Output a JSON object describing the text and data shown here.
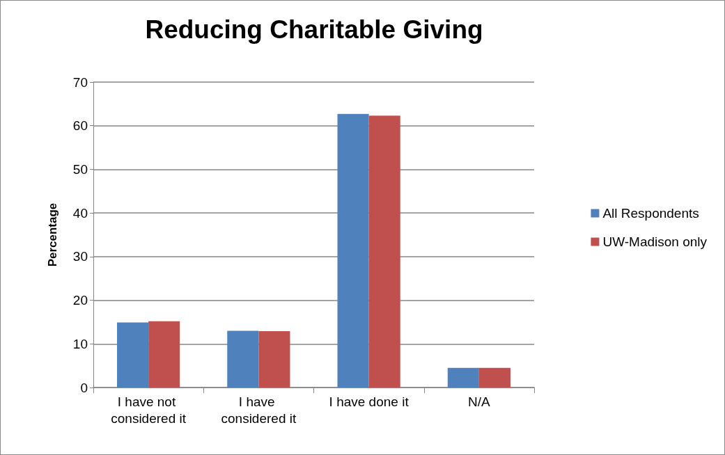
{
  "chart_data": {
    "type": "bar",
    "title": "Reducing Charitable Giving",
    "ylabel": "Percentage",
    "categories": [
      "I have not considered it",
      "I have considered it",
      "I have done it",
      "N/A"
    ],
    "series": [
      {
        "name": "All Respondents",
        "color": "#4f81bd",
        "values": [
          14.9,
          13.0,
          62.7,
          4.5
        ]
      },
      {
        "name": "UW-Madison only",
        "color": "#c0504d",
        "values": [
          15.2,
          12.9,
          62.3,
          4.5
        ]
      }
    ],
    "ylim": [
      0,
      70
    ],
    "yticks": [
      0,
      10,
      20,
      30,
      40,
      50,
      60,
      70
    ],
    "grid": "y",
    "legend": "right"
  }
}
